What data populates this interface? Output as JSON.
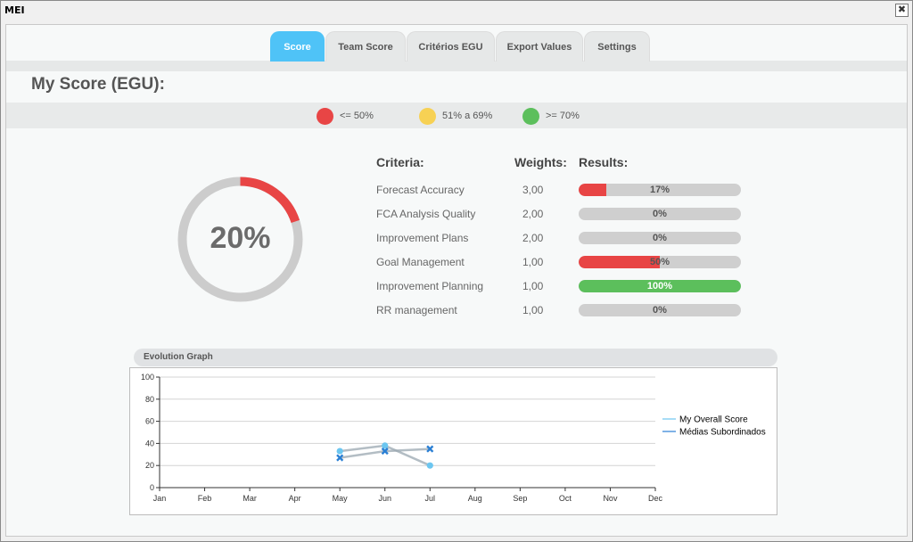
{
  "window": {
    "title": "MEI",
    "close_glyph": "✖"
  },
  "tabs": [
    {
      "label": "Score",
      "active": true
    },
    {
      "label": "Team Score",
      "active": false
    },
    {
      "label": "Critérios EGU",
      "active": false
    },
    {
      "label": "Export Values",
      "active": false
    },
    {
      "label": "Settings",
      "active": false
    }
  ],
  "page_title": "My Score (EGU):",
  "legend": [
    {
      "label": "<= 50%",
      "color": "#e84545"
    },
    {
      "label": "51% a 69%",
      "color": "#f7d154"
    },
    {
      "label": ">= 70%",
      "color": "#5cbf5c"
    }
  ],
  "gauge": {
    "value_label": "20%",
    "value": 0.2,
    "color": "#e84545",
    "track_color": "#cccccc"
  },
  "table": {
    "headers": {
      "criteria": "Criteria:",
      "weights": "Weights:",
      "results": "Results:"
    },
    "rows": [
      {
        "criteria": "Forecast Accuracy",
        "weight": "3,00",
        "result_label": "17%",
        "result": 17,
        "color": "#e84545",
        "label_color": "#555"
      },
      {
        "criteria": "FCA Analysis Quality",
        "weight": "2,00",
        "result_label": "0%",
        "result": 0,
        "color": "#e84545",
        "label_color": "#555"
      },
      {
        "criteria": "Improvement Plans",
        "weight": "2,00",
        "result_label": "0%",
        "result": 0,
        "color": "#e84545",
        "label_color": "#555"
      },
      {
        "criteria": "Goal Management",
        "weight": "1,00",
        "result_label": "50%",
        "result": 50,
        "color": "#e84545",
        "label_color": "#555"
      },
      {
        "criteria": "Improvement Planning",
        "weight": "1,00",
        "result_label": "100%",
        "result": 100,
        "color": "#5cbf5c",
        "label_color": "#ffffff"
      },
      {
        "criteria": "RR management",
        "weight": "1,00",
        "result_label": "0%",
        "result": 0,
        "color": "#e84545",
        "label_color": "#555"
      }
    ]
  },
  "evolution": {
    "title": "Evolution Graph",
    "chart_data": {
      "type": "line",
      "categories": [
        "Jan",
        "Feb",
        "Mar",
        "Apr",
        "May",
        "Jun",
        "Jul",
        "Aug",
        "Sep",
        "Oct",
        "Nov",
        "Dec"
      ],
      "ylim": [
        0,
        100
      ],
      "yticks": [
        0,
        20,
        40,
        60,
        80,
        100
      ],
      "series": [
        {
          "name": "My Overall Score",
          "values": [
            null,
            null,
            null,
            null,
            33,
            38,
            20,
            null,
            null,
            null,
            null,
            null
          ],
          "color": "#6cc6f0",
          "marker": "circle"
        },
        {
          "name": "Médias Subordinados",
          "values": [
            null,
            null,
            null,
            null,
            27,
            33,
            35,
            null,
            null,
            null,
            null,
            null
          ],
          "color": "#2a7fd4",
          "marker": "x"
        }
      ]
    }
  }
}
